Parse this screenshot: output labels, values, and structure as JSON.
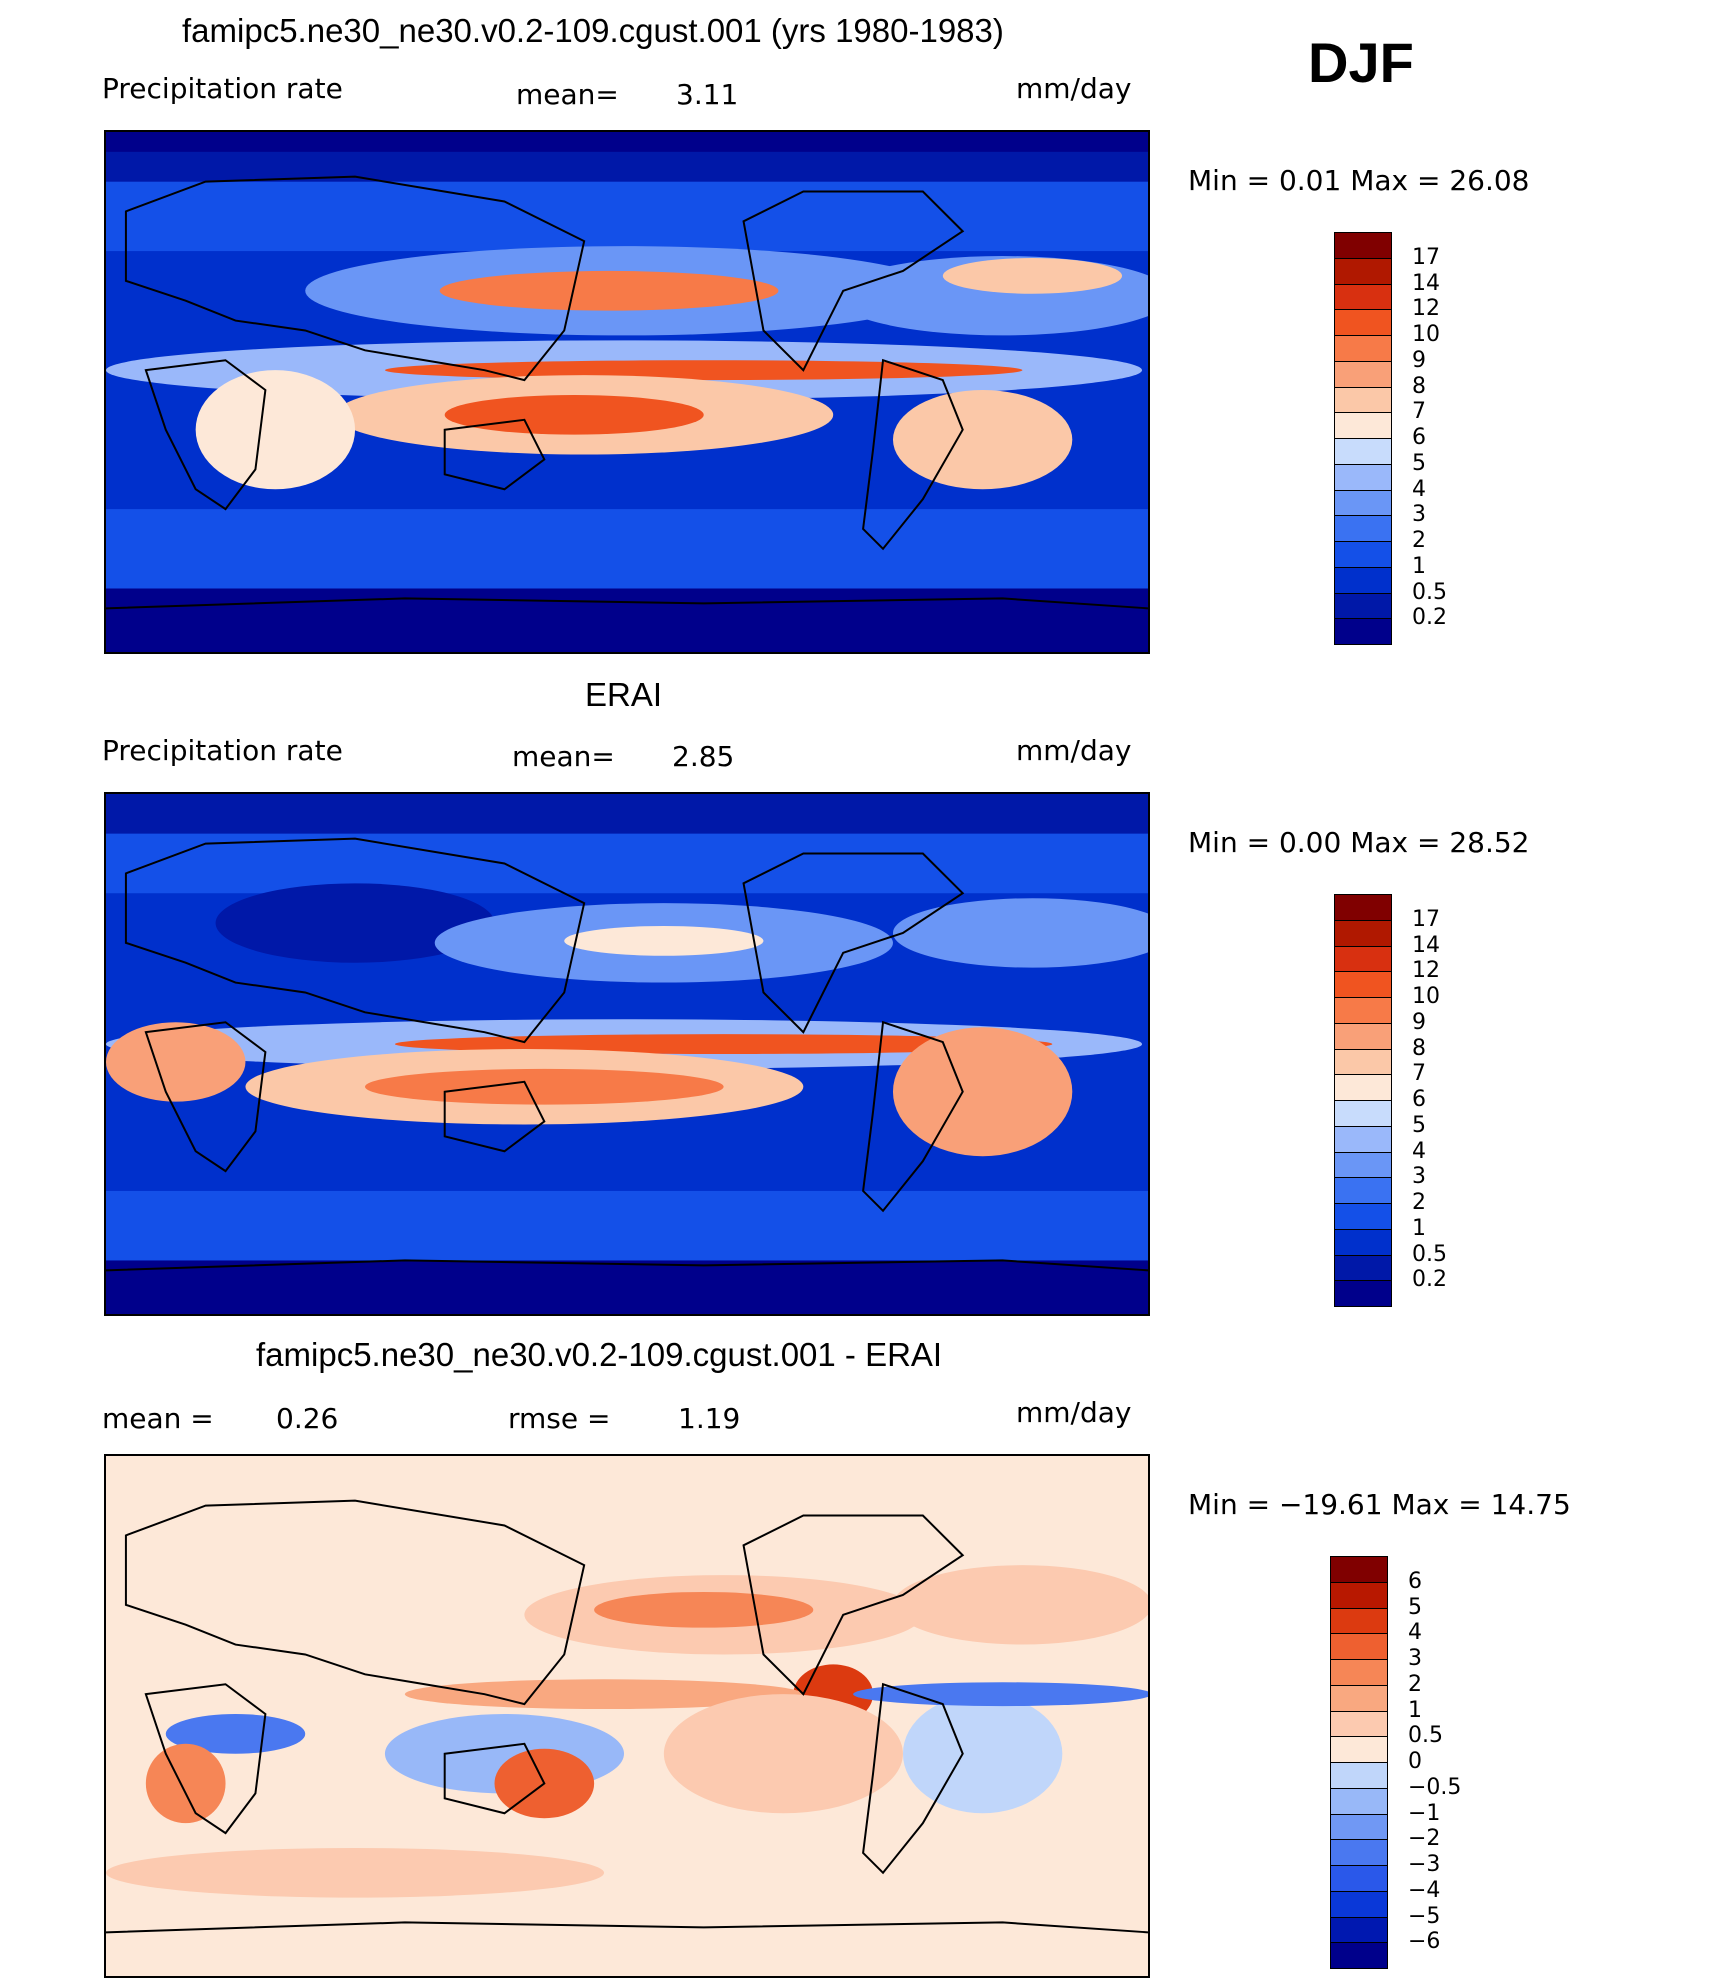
{
  "season": "DJF",
  "panels": [
    {
      "title": "famipc5.ne30_ne30.v0.2-109.cgust.001 (yrs 1980-1983)",
      "left_label": "Precipitation  rate",
      "mid_label": "mean=",
      "mid_value": "3.11",
      "units": "mm/day",
      "minmax": "Min  =      0.01  Max  =     26.08",
      "colorbar": {
        "colors": [
          "#00008b",
          "#0018a8",
          "#0030cc",
          "#1450e8",
          "#3a72f2",
          "#6a96f6",
          "#9ab8fa",
          "#c8dcfc",
          "#fde8d8",
          "#fbc8a8",
          "#f9a078",
          "#f77a48",
          "#f05420",
          "#d83010",
          "#b01800",
          "#800000"
        ],
        "ticks": [
          "17",
          "14",
          "12",
          "10",
          "9",
          "8",
          "7",
          "6",
          "5",
          "4",
          "3",
          "2",
          "1",
          "0.5",
          "0.2"
        ]
      },
      "chart_data": {
        "type": "heatmap",
        "title": "famipc5.ne30_ne30.v0.2-109.cgust.001 (yrs 1980-1983)",
        "variable": "Precipitation  rate",
        "units": "mm/day",
        "mean": 3.11,
        "min": 0.01,
        "max": 26.08,
        "levels": [
          0.2,
          0.5,
          1,
          2,
          3,
          4,
          5,
          6,
          7,
          8,
          9,
          10,
          12,
          14,
          17
        ]
      }
    },
    {
      "title": "ERAI",
      "left_label": "Precipitation  rate",
      "mid_label": "mean=",
      "mid_value": "2.85",
      "units": "mm/day",
      "minmax": "Min  =      0.00  Max  =     28.52",
      "colorbar": {
        "colors": [
          "#00008b",
          "#0018a8",
          "#0030cc",
          "#1450e8",
          "#3a72f2",
          "#6a96f6",
          "#9ab8fa",
          "#c8dcfc",
          "#fde8d8",
          "#fbc8a8",
          "#f9a078",
          "#f77a48",
          "#f05420",
          "#d83010",
          "#b01800",
          "#800000"
        ],
        "ticks": [
          "17",
          "14",
          "12",
          "10",
          "9",
          "8",
          "7",
          "6",
          "5",
          "4",
          "3",
          "2",
          "1",
          "0.5",
          "0.2"
        ]
      },
      "chart_data": {
        "type": "heatmap",
        "title": "ERAI",
        "variable": "Precipitation  rate",
        "units": "mm/day",
        "mean": 2.85,
        "min": 0.0,
        "max": 28.52,
        "levels": [
          0.2,
          0.5,
          1,
          2,
          3,
          4,
          5,
          6,
          7,
          8,
          9,
          10,
          12,
          14,
          17
        ]
      }
    },
    {
      "title": "famipc5.ne30_ne30.v0.2-109.cgust.001 - ERAI",
      "left_label": "mean  =",
      "left_value": "0.26",
      "mid_label": "rmse  =",
      "mid_value": "1.19",
      "units": "mm/day",
      "minmax": "Min  = −19.61  Max  =     14.75",
      "colorbar": {
        "colors": [
          "#00008b",
          "#0018b0",
          "#0a38d8",
          "#2a58ea",
          "#4a78f0",
          "#7098f4",
          "#98b8f8",
          "#c0d6fa",
          "#fde8d8",
          "#fccab0",
          "#f9a880",
          "#f68656",
          "#ee6030",
          "#dc3a10",
          "#b81800",
          "#800000"
        ],
        "ticks": [
          "6",
          "5",
          "4",
          "3",
          "2",
          "1",
          "0.5",
          "0",
          "−0.5",
          "−1",
          "−2",
          "−3",
          "−4",
          "−5",
          "−6"
        ]
      },
      "chart_data": {
        "type": "heatmap",
        "title": "famipc5.ne30_ne30.v0.2-109.cgust.001 - ERAI",
        "units": "mm/day",
        "mean": 0.26,
        "rmse": 1.19,
        "min": -19.61,
        "max": 14.75,
        "levels": [
          -6,
          -5,
          -4,
          -3,
          -2,
          -1,
          -0.5,
          0,
          0.5,
          1,
          2,
          3,
          4,
          5,
          6
        ]
      }
    }
  ]
}
